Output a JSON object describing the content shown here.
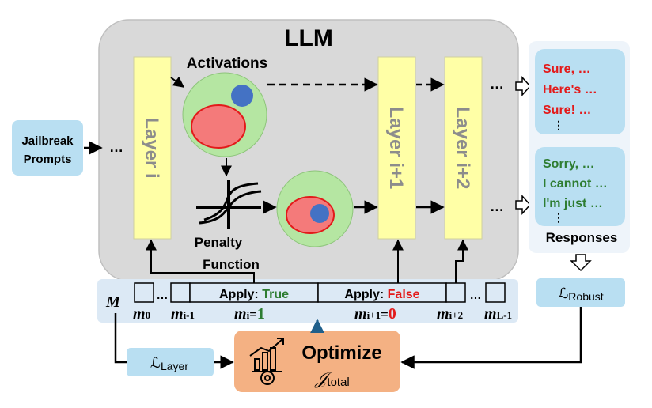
{
  "llm_label": "LLM",
  "input": {
    "line1": "Jailbreak",
    "line2": "Prompts"
  },
  "ellipsis": "…",
  "layers": {
    "layer_i": "Layer i",
    "layer_i1": "Layer i+1",
    "layer_i2": "Layer i+2"
  },
  "activations_label": "Activations",
  "penalty": {
    "line1": "Penalty",
    "line2": "Function"
  },
  "responses": {
    "harmful": [
      "Sure, …",
      "Here's …",
      "Sure!  …"
    ],
    "refusal": [
      "Sorry, …",
      "I cannot …",
      "I'm just …"
    ],
    "more": "⋮",
    "label": "Responses"
  },
  "mask": {
    "symbol": "M",
    "apply_true_prefix": "Apply: ",
    "apply_true_value": "True",
    "apply_false_prefix": "Apply: ",
    "apply_false_value": "False",
    "labels": {
      "m0": {
        "base": "m",
        "sub": "0"
      },
      "m_im1": {
        "base": "m",
        "sub": "i-1"
      },
      "m_i": {
        "base": "m",
        "sub": "i",
        "eq": "=",
        "val": "1"
      },
      "m_ip1": {
        "base": "m",
        "sub": "i+1",
        "eq": "=",
        "val": "0"
      },
      "m_ip2": {
        "base": "m",
        "sub": "i+2"
      },
      "m_L1": {
        "base": "m",
        "sub": "L-1"
      }
    }
  },
  "losses": {
    "robust": {
      "symbol": "ℒ",
      "sub": "Robust"
    },
    "layer": {
      "symbol": "ℒ",
      "sub": "Layer"
    }
  },
  "optimize": {
    "title": "Optimize",
    "symbol": "𝒥",
    "sub": "total"
  },
  "colors": {
    "llm_bg": "#d9d9d9",
    "layer_fill": "#ffffa6",
    "green_circle": "#b5e6a2",
    "red_region": "#f47a7a",
    "blue_dot": "#4472c4",
    "light_blue": "#b9dff2",
    "mask_bar": "#dce9f5",
    "optimize_bg": "#f4b183",
    "harmful_text": "#e31a1a",
    "refusal_text": "#2e7d32",
    "true_text": "#2e7d32",
    "false_text": "#e31a1a"
  }
}
